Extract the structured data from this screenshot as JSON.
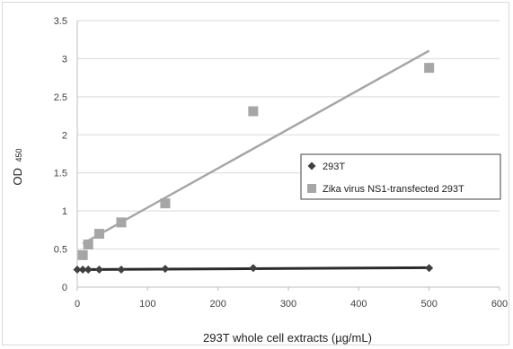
{
  "chart_data": {
    "type": "scatter",
    "xlabel": "293T whole cell extracts (µg/mL)",
    "ylabel_main": "OD",
    "ylabel_sub": "450",
    "xlim": [
      0,
      600
    ],
    "ylim": [
      0,
      3.5
    ],
    "x_ticks": [
      "0",
      "100",
      "200",
      "300",
      "400",
      "500",
      "600"
    ],
    "y_ticks": [
      "0",
      "0.5",
      "1",
      "1.5",
      "2",
      "2.5",
      "3",
      "3.5"
    ],
    "grid": "horizontal",
    "legend_position": "right",
    "series": [
      {
        "name": "293T",
        "marker": "diamond",
        "color": "#404040",
        "trendline": "linear",
        "points": [
          {
            "x": 0,
            "y": 0.23
          },
          {
            "x": 7.8,
            "y": 0.23
          },
          {
            "x": 15.6,
            "y": 0.23
          },
          {
            "x": 31.25,
            "y": 0.23
          },
          {
            "x": 62.5,
            "y": 0.23
          },
          {
            "x": 125,
            "y": 0.24
          },
          {
            "x": 250,
            "y": 0.25
          },
          {
            "x": 500,
            "y": 0.25
          }
        ]
      },
      {
        "name": "Zika virus NS1-transfected 293T",
        "marker": "square",
        "color": "#a6a6a6",
        "trendline": "linear",
        "points": [
          {
            "x": 7.8,
            "y": 0.42
          },
          {
            "x": 15.6,
            "y": 0.56
          },
          {
            "x": 31.25,
            "y": 0.7
          },
          {
            "x": 62.5,
            "y": 0.85
          },
          {
            "x": 125,
            "y": 1.1
          },
          {
            "x": 250,
            "y": 2.31
          },
          {
            "x": 500,
            "y": 2.88
          }
        ]
      }
    ]
  }
}
